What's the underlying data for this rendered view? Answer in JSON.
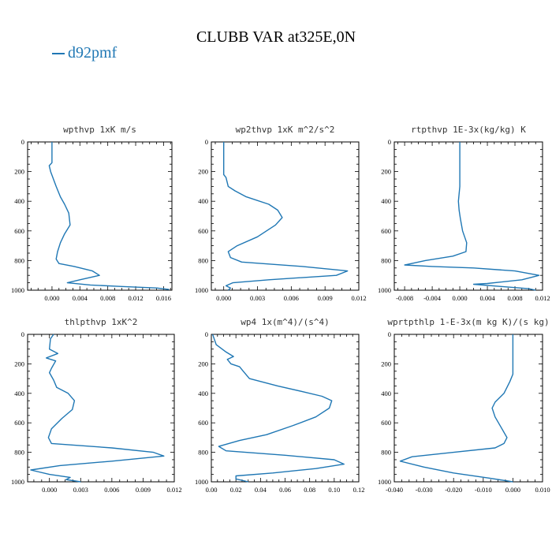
{
  "title": "CLUBB VAR at325E,0N",
  "legend": {
    "label": "d92pmf",
    "color": "#1f77b4"
  },
  "chart_data": [
    {
      "type": "line",
      "title": "wpthvp  1xK m/s",
      "xlim": [
        -0.0035,
        0.0172
      ],
      "xticks": [
        0.0,
        0.004,
        0.008,
        0.012,
        0.016
      ],
      "xtick_labels": [
        "0.000",
        "0.004",
        "0.008",
        "0.012",
        "0.016"
      ],
      "ylim": [
        1000,
        0
      ],
      "yticks": [
        0,
        200,
        400,
        600,
        800,
        1000
      ],
      "series": [
        {
          "points": [
            [
              0.0,
              0
            ],
            [
              0.0,
              140
            ],
            [
              -0.0004,
              160
            ],
            [
              -0.0002,
              200
            ],
            [
              0.0002,
              250
            ],
            [
              0.0006,
              300
            ],
            [
              0.0012,
              370
            ],
            [
              0.0018,
              420
            ],
            [
              0.0024,
              480
            ],
            [
              0.0026,
              560
            ],
            [
              0.0018,
              620
            ],
            [
              0.0012,
              680
            ],
            [
              0.0008,
              740
            ],
            [
              0.0006,
              790
            ],
            [
              0.001,
              820
            ],
            [
              0.0032,
              840
            ],
            [
              0.0058,
              870
            ],
            [
              0.0068,
              900
            ],
            [
              0.004,
              930
            ],
            [
              0.0022,
              950
            ],
            [
              0.0055,
              965
            ],
            [
              0.01,
              975
            ],
            [
              0.015,
              985
            ],
            [
              0.0168,
              995
            ]
          ]
        }
      ]
    },
    {
      "type": "line",
      "title": "wp2thvp  1xK m^2/s^2",
      "xlim": [
        -0.0011,
        0.012
      ],
      "xticks": [
        0.0,
        0.003,
        0.006,
        0.009,
        0.012
      ],
      "xtick_labels": [
        "0.000",
        "0.003",
        "0.006",
        "0.009",
        "0.012"
      ],
      "ylim": [
        1000,
        0
      ],
      "yticks": [
        0,
        200,
        400,
        600,
        800,
        1000
      ],
      "series": [
        {
          "points": [
            [
              0.0,
              0
            ],
            [
              0.0,
              220
            ],
            [
              0.0002,
              240
            ],
            [
              0.0004,
              300
            ],
            [
              0.001,
              330
            ],
            [
              0.002,
              370
            ],
            [
              0.004,
              420
            ],
            [
              0.0048,
              460
            ],
            [
              0.0052,
              510
            ],
            [
              0.0046,
              560
            ],
            [
              0.003,
              640
            ],
            [
              0.0012,
              700
            ],
            [
              0.0004,
              740
            ],
            [
              0.0006,
              780
            ],
            [
              0.0016,
              810
            ],
            [
              0.007,
              840
            ],
            [
              0.011,
              870
            ],
            [
              0.01,
              900
            ],
            [
              0.004,
              930
            ],
            [
              0.0008,
              950
            ],
            [
              0.0002,
              970
            ],
            [
              0.0006,
              985
            ],
            [
              0.0004,
              1000
            ]
          ]
        }
      ]
    },
    {
      "type": "line",
      "title": "rtpthvp  1E-3x(kg/kg) K",
      "xlim": [
        -0.0095,
        0.012
      ],
      "xticks": [
        -0.008,
        -0.004,
        0.0,
        0.004,
        0.008,
        0.012
      ],
      "xtick_labels": [
        "-0.008",
        "-0.004",
        "0.000",
        "0.004",
        "0.008",
        "0.012"
      ],
      "ylim": [
        1000,
        0
      ],
      "yticks": [
        0,
        200,
        400,
        600,
        800,
        1000
      ],
      "series": [
        {
          "points": [
            [
              0.0,
              0
            ],
            [
              0.0,
              300
            ],
            [
              -0.0002,
              400
            ],
            [
              -0.0001,
              460
            ],
            [
              0.0001,
              520
            ],
            [
              0.0004,
              600
            ],
            [
              0.001,
              680
            ],
            [
              0.0009,
              740
            ],
            [
              -0.001,
              770
            ],
            [
              -0.005,
              800
            ],
            [
              -0.007,
              820
            ],
            [
              -0.008,
              830
            ],
            [
              -0.004,
              840
            ],
            [
              0.002,
              850
            ],
            [
              0.008,
              870
            ],
            [
              0.0115,
              900
            ],
            [
              0.009,
              930
            ],
            [
              0.004,
              955
            ],
            [
              0.002,
              960
            ],
            [
              0.006,
              975
            ],
            [
              0.01,
              990
            ],
            [
              0.011,
              1000
            ]
          ]
        }
      ]
    },
    {
      "type": "line",
      "title": "thlpthvp  1xK^2",
      "xlim": [
        -0.0021,
        0.012
      ],
      "xticks": [
        0.0,
        0.003,
        0.006,
        0.009,
        0.012
      ],
      "xtick_labels": [
        "0.000",
        "0.003",
        "0.006",
        "0.009",
        "0.012"
      ],
      "ylim": [
        1000,
        0
      ],
      "yticks": [
        0,
        200,
        400,
        600,
        800,
        1000
      ],
      "series": [
        {
          "points": [
            [
              0.0004,
              0
            ],
            [
              0.0001,
              30
            ],
            [
              0.0,
              100
            ],
            [
              0.0008,
              130
            ],
            [
              -0.0003,
              160
            ],
            [
              0.0006,
              180
            ],
            [
              0.0002,
              230
            ],
            [
              0.0,
              260
            ],
            [
              0.0004,
              310
            ],
            [
              0.0007,
              360
            ],
            [
              0.0018,
              400
            ],
            [
              0.0024,
              450
            ],
            [
              0.0022,
              510
            ],
            [
              0.0012,
              570
            ],
            [
              0.0002,
              640
            ],
            [
              -0.0001,
              700
            ],
            [
              0.0002,
              740
            ],
            [
              0.006,
              770
            ],
            [
              0.01,
              800
            ],
            [
              0.011,
              825
            ],
            [
              0.006,
              860
            ],
            [
              0.001,
              890
            ],
            [
              -0.0018,
              920
            ],
            [
              0.0,
              950
            ],
            [
              0.002,
              970
            ],
            [
              0.0016,
              985
            ],
            [
              0.003,
              1000
            ]
          ]
        }
      ]
    },
    {
      "type": "line",
      "title": "wp4  1x(m^4)/(s^4)",
      "xlim": [
        0.0,
        0.12
      ],
      "xticks": [
        0.0,
        0.02,
        0.04,
        0.06,
        0.08,
        0.1,
        0.12
      ],
      "xtick_labels": [
        "0.00",
        "0.02",
        "0.04",
        "0.06",
        "0.08",
        "0.10",
        "0.12"
      ],
      "ylim": [
        1000,
        0
      ],
      "yticks": [
        0,
        200,
        400,
        600,
        800,
        1000
      ],
      "series": [
        {
          "points": [
            [
              0.001,
              0
            ],
            [
              0.004,
              70
            ],
            [
              0.012,
              120
            ],
            [
              0.018,
              150
            ],
            [
              0.013,
              170
            ],
            [
              0.016,
              200
            ],
            [
              0.023,
              220
            ],
            [
              0.026,
              250
            ],
            [
              0.031,
              300
            ],
            [
              0.054,
              350
            ],
            [
              0.075,
              390
            ],
            [
              0.09,
              420
            ],
            [
              0.098,
              450
            ],
            [
              0.096,
              500
            ],
            [
              0.085,
              560
            ],
            [
              0.066,
              620
            ],
            [
              0.045,
              680
            ],
            [
              0.023,
              720
            ],
            [
              0.006,
              760
            ],
            [
              0.012,
              790
            ],
            [
              0.06,
              820
            ],
            [
              0.1,
              850
            ],
            [
              0.108,
              880
            ],
            [
              0.085,
              910
            ],
            [
              0.05,
              940
            ],
            [
              0.02,
              960
            ],
            [
              0.02,
              980
            ],
            [
              0.03,
              1000
            ]
          ]
        }
      ]
    },
    {
      "type": "line",
      "title": "wprtpthlp  1-E-3x(m kg K)/(s kg)",
      "xlim": [
        -0.04,
        0.01
      ],
      "xticks": [
        -0.04,
        -0.03,
        -0.02,
        -0.01,
        0.0,
        0.01
      ],
      "xtick_labels": [
        "-0.040",
        "-0.030",
        "-0.020",
        "-0.010",
        "0.000",
        "0.010"
      ],
      "ylim": [
        1000,
        0
      ],
      "yticks": [
        0,
        200,
        400,
        600,
        800,
        1000
      ],
      "series": [
        {
          "points": [
            [
              0.0,
              0
            ],
            [
              0.0,
              270
            ],
            [
              -0.001,
              320
            ],
            [
              -0.003,
              400
            ],
            [
              -0.006,
              460
            ],
            [
              -0.007,
              500
            ],
            [
              -0.006,
              560
            ],
            [
              -0.004,
              630
            ],
            [
              -0.002,
              700
            ],
            [
              -0.003,
              740
            ],
            [
              -0.006,
              770
            ],
            [
              -0.02,
              800
            ],
            [
              -0.034,
              830
            ],
            [
              -0.038,
              860
            ],
            [
              -0.03,
              900
            ],
            [
              -0.02,
              940
            ],
            [
              -0.008,
              975
            ],
            [
              0.0,
              1000
            ]
          ]
        }
      ]
    }
  ]
}
